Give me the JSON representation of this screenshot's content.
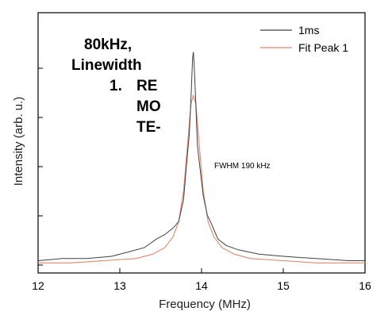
{
  "chart_data": {
    "type": "line",
    "xlabel": "Frequency (MHz)",
    "ylabel": "Intensity (arb. u.)",
    "xlim": [
      12,
      16
    ],
    "ylim": [
      0,
      1
    ],
    "x_ticks": [
      "12",
      "13",
      "14",
      "15",
      "16"
    ],
    "grid": false,
    "legend_position": "top-right",
    "annotation": "FWHM 190 kHz",
    "series": [
      {
        "name": "1ms",
        "color": "#404040",
        "x": [
          12.0,
          12.3,
          12.6,
          12.9,
          13.1,
          13.3,
          13.45,
          13.55,
          13.65,
          13.72,
          13.78,
          13.82,
          13.85,
          13.87,
          13.89,
          13.9,
          13.91,
          13.93,
          13.95,
          13.98,
          14.02,
          14.07,
          14.12,
          14.2,
          14.3,
          14.45,
          14.7,
          15.0,
          15.4,
          15.8,
          16.0
        ],
        "y": [
          0.02,
          0.03,
          0.03,
          0.04,
          0.06,
          0.08,
          0.12,
          0.14,
          0.17,
          0.2,
          0.3,
          0.48,
          0.6,
          0.76,
          0.95,
          0.98,
          0.92,
          0.74,
          0.55,
          0.45,
          0.32,
          0.23,
          0.19,
          0.12,
          0.09,
          0.07,
          0.05,
          0.04,
          0.03,
          0.02,
          0.02
        ]
      },
      {
        "name": "Fit Peak 1",
        "color": "#e0886a",
        "x": [
          12.0,
          12.4,
          12.8,
          13.2,
          13.4,
          13.55,
          13.65,
          13.72,
          13.78,
          13.83,
          13.87,
          13.9,
          13.93,
          13.97,
          14.02,
          14.08,
          14.15,
          14.25,
          14.4,
          14.6,
          15.0,
          15.4,
          16.0
        ],
        "y": [
          0.01,
          0.01,
          0.02,
          0.03,
          0.05,
          0.08,
          0.13,
          0.2,
          0.34,
          0.56,
          0.74,
          0.78,
          0.74,
          0.56,
          0.34,
          0.2,
          0.13,
          0.08,
          0.05,
          0.03,
          0.02,
          0.01,
          0.01
        ]
      }
    ]
  },
  "overlay": {
    "line1": "80kHz,",
    "line2": "Linewidth",
    "item_number": "1.",
    "item_line1": "RE",
    "item_line2": "MO",
    "item_line3": "TE-"
  }
}
